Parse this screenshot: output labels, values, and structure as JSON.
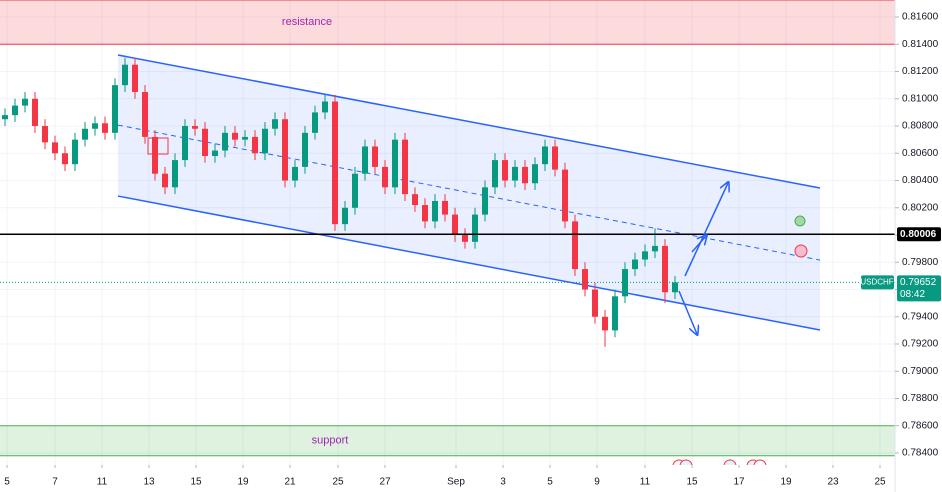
{
  "chart_data": {
    "type": "candlestick",
    "symbol": "USDCHF",
    "last_price": 0.79652,
    "countdown": "08:42",
    "level": 0.80006,
    "up_color": "#089981",
    "down_color": "#f23645",
    "grid": true,
    "x": [
      0,
      1,
      2,
      3,
      4,
      5,
      6,
      7,
      8,
      9,
      10,
      11,
      12,
      13,
      14,
      15,
      16,
      17,
      18,
      19,
      20,
      21,
      22,
      23,
      24,
      25,
      26,
      27,
      28,
      29,
      30,
      31,
      32,
      33,
      34,
      35,
      36,
      37,
      38,
      39,
      40,
      41,
      42,
      43,
      44,
      45,
      46,
      47,
      48,
      49,
      50,
      51,
      52,
      53,
      54,
      55,
      56,
      57,
      58,
      59,
      60,
      61,
      62,
      63,
      64,
      65,
      66,
      67
    ],
    "open": [
      0.8085,
      0.8088,
      0.8095,
      0.81,
      0.808,
      0.8068,
      0.806,
      0.8052,
      0.807,
      0.8078,
      0.8082,
      0.8075,
      0.811,
      0.8125,
      0.8105,
      0.8072,
      0.8045,
      0.8035,
      0.8055,
      0.808,
      0.8078,
      0.8058,
      0.8062,
      0.8075,
      0.807,
      0.8072,
      0.806,
      0.8078,
      0.8085,
      0.804,
      0.805,
      0.8075,
      0.809,
      0.8098,
      0.8008,
      0.802,
      0.8045,
      0.8065,
      0.805,
      0.8035,
      0.807,
      0.803,
      0.8022,
      0.801,
      0.8025,
      0.8015,
      0.8,
      0.7995,
      0.8015,
      0.8035,
      0.8055,
      0.804,
      0.805,
      0.8038,
      0.8052,
      0.8065,
      0.8048,
      0.801,
      0.7975,
      0.796,
      0.794,
      0.793,
      0.7955,
      0.7975,
      0.7982,
      0.7988,
      0.7992,
      0.7958
    ],
    "high": [
      0.8093,
      0.81,
      0.8105,
      0.8105,
      0.8085,
      0.8073,
      0.8065,
      0.8075,
      0.8083,
      0.8087,
      0.8087,
      0.8115,
      0.813,
      0.813,
      0.811,
      0.8077,
      0.805,
      0.806,
      0.8085,
      0.8085,
      0.8083,
      0.8067,
      0.808,
      0.808,
      0.8077,
      0.8077,
      0.8083,
      0.809,
      0.809,
      0.8055,
      0.808,
      0.8095,
      0.8103,
      0.8103,
      0.8025,
      0.805,
      0.807,
      0.807,
      0.8055,
      0.8075,
      0.8075,
      0.8035,
      0.8027,
      0.803,
      0.803,
      0.802,
      0.8005,
      0.802,
      0.804,
      0.806,
      0.806,
      0.8055,
      0.8055,
      0.8057,
      0.807,
      0.807,
      0.8053,
      0.8015,
      0.798,
      0.7965,
      0.7945,
      0.796,
      0.798,
      0.7987,
      0.7993,
      0.8005,
      0.7997,
      0.797
    ],
    "low": [
      0.808,
      0.8083,
      0.809,
      0.8075,
      0.8063,
      0.8055,
      0.8047,
      0.8047,
      0.8065,
      0.8073,
      0.807,
      0.807,
      0.8105,
      0.81,
      0.8067,
      0.804,
      0.803,
      0.803,
      0.805,
      0.8073,
      0.8053,
      0.8053,
      0.8057,
      0.8065,
      0.8065,
      0.8055,
      0.8055,
      0.8073,
      0.8035,
      0.8035,
      0.8045,
      0.807,
      0.8085,
      0.8003,
      0.8003,
      0.8015,
      0.804,
      0.8045,
      0.803,
      0.803,
      0.8025,
      0.8017,
      0.8005,
      0.8005,
      0.801,
      0.7995,
      0.799,
      0.799,
      0.801,
      0.803,
      0.8035,
      0.8035,
      0.8033,
      0.8033,
      0.8047,
      0.8043,
      0.8005,
      0.797,
      0.7955,
      0.7935,
      0.7918,
      0.7925,
      0.795,
      0.797,
      0.7977,
      0.7983,
      0.795,
      0.7953
    ],
    "close": [
      0.8088,
      0.8095,
      0.81,
      0.808,
      0.8068,
      0.806,
      0.8052,
      0.807,
      0.8078,
      0.8082,
      0.8075,
      0.811,
      0.8125,
      0.8105,
      0.8072,
      0.8045,
      0.8035,
      0.8055,
      0.808,
      0.8078,
      0.8058,
      0.8062,
      0.8075,
      0.807,
      0.8072,
      0.806,
      0.8078,
      0.8085,
      0.804,
      0.805,
      0.8075,
      0.809,
      0.8098,
      0.8008,
      0.802,
      0.8045,
      0.8065,
      0.805,
      0.8035,
      0.807,
      0.803,
      0.8022,
      0.801,
      0.8025,
      0.8015,
      0.8,
      0.7995,
      0.8015,
      0.8035,
      0.8055,
      0.804,
      0.805,
      0.8038,
      0.8052,
      0.8065,
      0.8048,
      0.801,
      0.7975,
      0.796,
      0.794,
      0.793,
      0.7955,
      0.7975,
      0.7982,
      0.7988,
      0.7992,
      0.7958,
      0.79652
    ],
    "xlim": [
      -0.5,
      89
    ],
    "xticks": [
      {
        "value": 0.2,
        "label": "5"
      },
      {
        "value": 5.0,
        "label": "7"
      },
      {
        "value": 9.7,
        "label": "11"
      },
      {
        "value": 14.4,
        "label": "13"
      },
      {
        "value": 19.1,
        "label": "15"
      },
      {
        "value": 23.8,
        "label": "19"
      },
      {
        "value": 28.5,
        "label": "21"
      },
      {
        "value": 33.3,
        "label": "25"
      },
      {
        "value": 38.0,
        "label": "27"
      },
      {
        "value": 45.1,
        "label": "Sep"
      },
      {
        "value": 49.8,
        "label": "3"
      },
      {
        "value": 54.5,
        "label": "5"
      },
      {
        "value": 59.2,
        "label": "9"
      },
      {
        "value": 64.0,
        "label": "11"
      },
      {
        "value": 68.7,
        "label": "15"
      },
      {
        "value": 73.4,
        "label": "17"
      },
      {
        "value": 78.1,
        "label": "19"
      },
      {
        "value": 82.8,
        "label": "23"
      },
      {
        "value": 87.5,
        "label": "25"
      }
    ],
    "ylim": [
      0.78312,
      0.81725
    ],
    "yticks": [
      {
        "value": 0.784,
        "label": "0.78400"
      },
      {
        "value": 0.786,
        "label": "0.78600"
      },
      {
        "value": 0.788,
        "label": "0.78800"
      },
      {
        "value": 0.79,
        "label": "0.79000"
      },
      {
        "value": 0.792,
        "label": "0.79200"
      },
      {
        "value": 0.794,
        "label": "0.79400"
      },
      {
        "value": 0.796,
        "label": "0.79600"
      },
      {
        "value": 0.798,
        "label": "0.79800"
      },
      {
        "value": 0.8,
        "label": "0.80000"
      },
      {
        "value": 0.802,
        "label": "0.80200"
      },
      {
        "value": 0.804,
        "label": "0.80400"
      },
      {
        "value": 0.806,
        "label": "0.80600"
      },
      {
        "value": 0.808,
        "label": "0.80800"
      },
      {
        "value": 0.81,
        "label": "0.81000"
      },
      {
        "value": 0.812,
        "label": "0.81200"
      },
      {
        "value": 0.814,
        "label": "0.81400"
      },
      {
        "value": 0.816,
        "label": "0.81600"
      }
    ],
    "zones": [
      {
        "label": "resistance",
        "range": [
          0.814,
          0.81725
        ],
        "color": "#f23645"
      },
      {
        "label": "support",
        "range": [
          0.7838,
          0.786
        ],
        "color": "#4caf50"
      }
    ],
    "channel": {
      "color": "#2962ff",
      "upper": {
        "x": [
          11.3,
          81.5
        ],
        "y": [
          0.81321,
          0.80345
        ]
      },
      "middle": {
        "x": [
          11.3,
          81.5
        ],
        "y": [
          0.80807,
          0.79816
        ]
      },
      "lower": {
        "x": [
          11.3,
          81.5
        ],
        "y": [
          0.80286,
          0.79303
        ]
      }
    }
  }
}
